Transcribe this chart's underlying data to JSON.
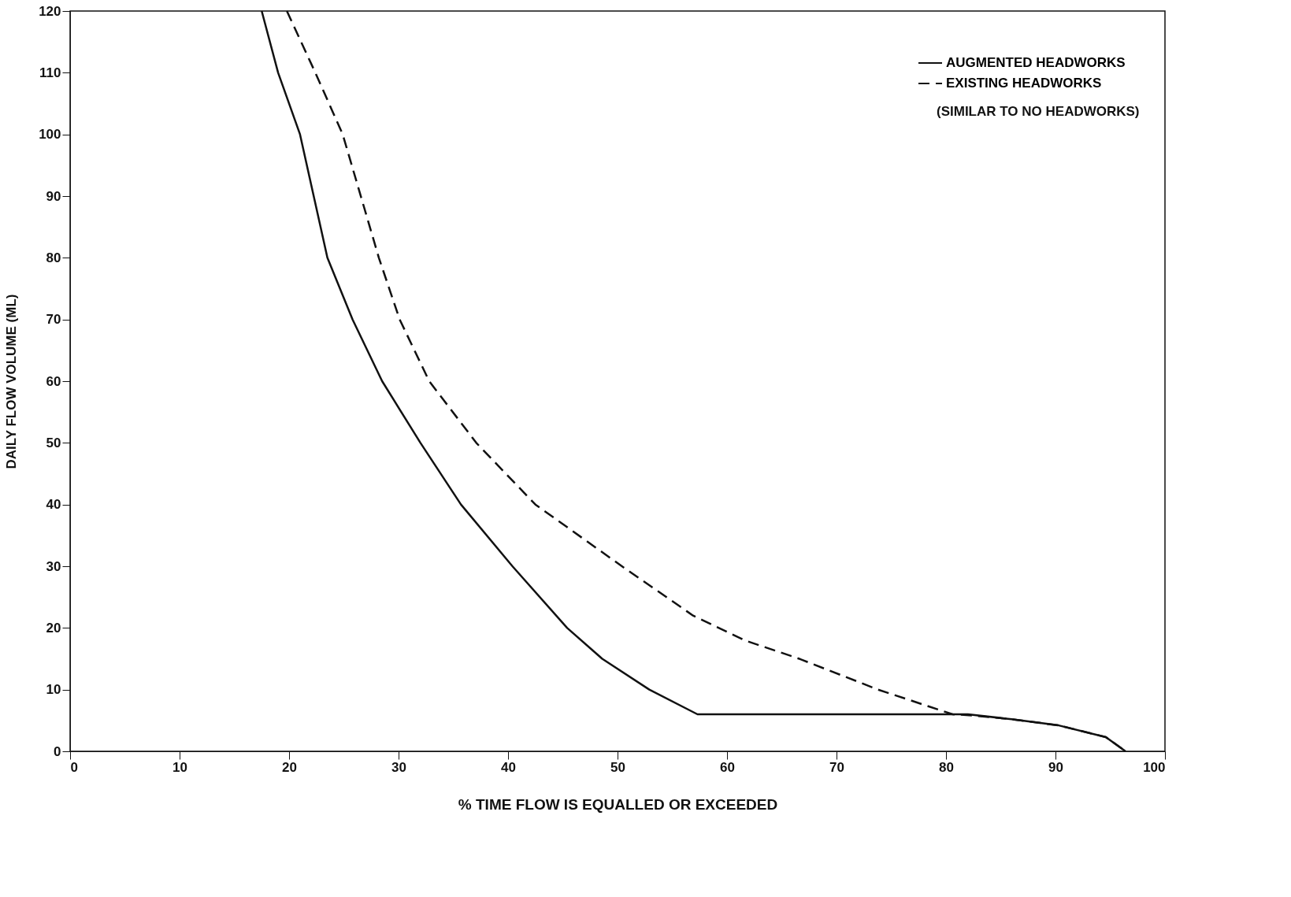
{
  "chart_data": {
    "type": "line",
    "xlabel": "% TIME FLOW IS EQUALLED OR EXCEEDED",
    "ylabel": "DAILY FLOW VOLUME (ML)",
    "xlim": [
      0,
      100
    ],
    "ylim": [
      0,
      120
    ],
    "xticks": [
      0,
      10,
      20,
      30,
      40,
      50,
      60,
      70,
      80,
      90,
      100
    ],
    "yticks": [
      0,
      10,
      20,
      30,
      40,
      50,
      60,
      70,
      80,
      90,
      100,
      110,
      120
    ],
    "grid": false,
    "legend": "top right",
    "marker": "none",
    "annotations": [
      "(SIMILAR TO NO HEADWORKS)"
    ],
    "series": [
      {
        "name": "AUGMENTED HEADWORKS",
        "color": "#111111",
        "line_style": "solid",
        "x": [
          17.5,
          19.0,
          21.0,
          23.5,
          25.8,
          28.5,
          32.0,
          35.7,
          40.4,
          45.4,
          48.6,
          52.9,
          57.3,
          65.0,
          75.0,
          82.0,
          86.0,
          90.3,
          94.6,
          96.4
        ],
        "values": [
          120,
          110,
          100,
          80,
          70,
          60,
          50,
          40,
          30,
          20,
          15,
          10,
          6,
          6,
          6,
          6,
          5.2,
          4.2,
          2.3,
          0
        ]
      },
      {
        "name": "EXISTING HEADWORKS",
        "color": "#111111",
        "line_style": "dashed",
        "x": [
          19.8,
          22.4,
          24.9,
          28.2,
          30.1,
          32.8,
          37.1,
          42.5,
          50.4,
          56.9,
          61.6,
          66.6,
          73.8,
          80.6,
          82.5,
          86.0,
          90.3,
          94.6,
          96.4
        ],
        "values": [
          120,
          110,
          100,
          80,
          70,
          60,
          50,
          40,
          30,
          22,
          18,
          15,
          10,
          6,
          5.8,
          5.2,
          4.2,
          2.3,
          0
        ]
      }
    ]
  }
}
